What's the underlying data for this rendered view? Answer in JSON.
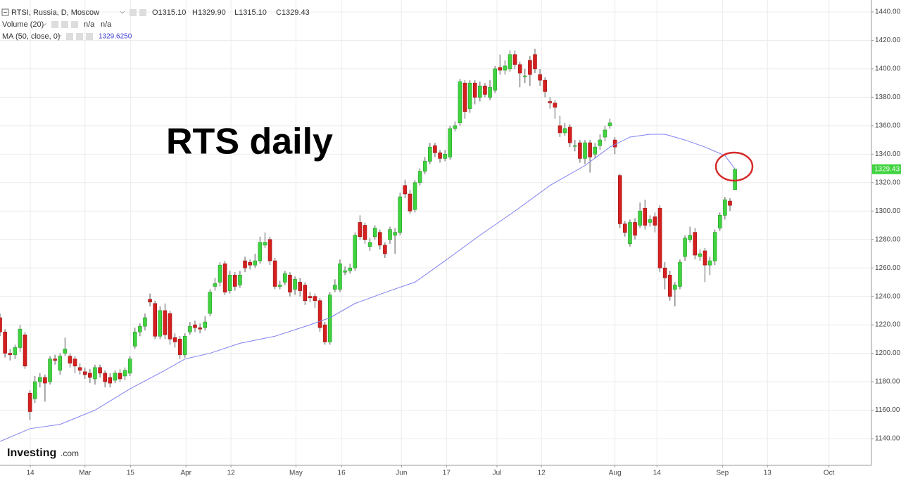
{
  "header": {
    "ohlc": [
      "O1315.10",
      "H1329.90",
      "L1315.10",
      "C1329.43"
    ],
    "volume": "Volume (20)",
    "volume_values": [
      "n/a",
      "n/a"
    ]
  },
  "logo": {
    "brand": "Investing",
    "suffix": ".com"
  },
  "chart_data": {
    "type": "candlestick",
    "annotation": "RTS daily",
    "xlim": [
      0,
      174.3
    ],
    "xticks": [
      {
        "value": 6.06,
        "label": "14"
      },
      {
        "value": 17.0,
        "label": "Mar"
      },
      {
        "value": 26.1,
        "label": "15"
      },
      {
        "value": 37.2,
        "label": "Apr"
      },
      {
        "value": 46.2,
        "label": "12"
      },
      {
        "value": 59.2,
        "label": "May"
      },
      {
        "value": 68.3,
        "label": "16"
      },
      {
        "value": 80.3,
        "label": "Jun"
      },
      {
        "value": 89.3,
        "label": "17"
      },
      {
        "value": 99.4,
        "label": "Jul"
      },
      {
        "value": 108.3,
        "label": "12"
      },
      {
        "value": 123.0,
        "label": "Aug"
      },
      {
        "value": 131.4,
        "label": "14"
      },
      {
        "value": 144.5,
        "label": "Sep"
      },
      {
        "value": 153.5,
        "label": "13"
      },
      {
        "value": 165.8,
        "label": "Oct"
      }
    ],
    "ylim": [
      1121.2,
      1448.4
    ],
    "yticks": [
      {
        "value": 1140,
        "label": "1140.00"
      },
      {
        "value": 1160,
        "label": "1160.00"
      },
      {
        "value": 1180,
        "label": "1180.00"
      },
      {
        "value": 1200,
        "label": "1200.00"
      },
      {
        "value": 1220,
        "label": "1220.00"
      },
      {
        "value": 1240,
        "label": "1240.00"
      },
      {
        "value": 1260,
        "label": "1260.00"
      },
      {
        "value": 1280,
        "label": "1280.00"
      },
      {
        "value": 1300,
        "label": "1300.00"
      },
      {
        "value": 1320,
        "label": "1320.00"
      },
      {
        "value": 1340,
        "label": "1340.00"
      },
      {
        "value": 1360,
        "label": "1360.00"
      },
      {
        "value": 1380,
        "label": "1380.00"
      },
      {
        "value": 1400,
        "label": "1400.00"
      },
      {
        "value": 1420,
        "label": "1420.00"
      },
      {
        "value": 1440,
        "label": "1440.00"
      }
    ],
    "grid": true,
    "series": [
      {
        "name": "RTSI, Russia, D, Moscow",
        "type": "candlestick",
        "up_color": "#3fd43f",
        "down_color": "#d61f1f",
        "last_label": "1329.43",
        "x": [
          0,
          1,
          2,
          3,
          4,
          5,
          6,
          7,
          8,
          9,
          10,
          11,
          12,
          13,
          14,
          15,
          16,
          17,
          18,
          19,
          20,
          21,
          22,
          23,
          24,
          25,
          26,
          27,
          28,
          29,
          30,
          31,
          32,
          33,
          34,
          35,
          36,
          37,
          38,
          39,
          40,
          41,
          42,
          43,
          44,
          45,
          46,
          47,
          48,
          49,
          50,
          51,
          52,
          53,
          54,
          55,
          56,
          57,
          58,
          59,
          60,
          61,
          62,
          63,
          64,
          65,
          66,
          67,
          68,
          69,
          70,
          71,
          72,
          73,
          74,
          75,
          76,
          77,
          78,
          79,
          80,
          81,
          82,
          83,
          84,
          85,
          86,
          87,
          88,
          89,
          90,
          91,
          92,
          93,
          94,
          95,
          96,
          97,
          98,
          99,
          100,
          101,
          102,
          103,
          104,
          105,
          106,
          107,
          108,
          109,
          110,
          111,
          112,
          113,
          114,
          115,
          116,
          117,
          118,
          119,
          120,
          121,
          122,
          123,
          124,
          125,
          126,
          127,
          128,
          129,
          130,
          131,
          132,
          133,
          134,
          135,
          136,
          137,
          138,
          139,
          140,
          141,
          142,
          143,
          144,
          145,
          146,
          147
        ],
        "open": [
          1225,
          1215,
          1200,
          1199,
          1204,
          1213,
          1172,
          1168,
          1180,
          1183,
          1180,
          1196,
          1188,
          1200,
          1198,
          1196,
          1190,
          1187,
          1186,
          1182,
          1190,
          1186,
          1183,
          1181,
          1186,
          1184,
          1186,
          1205,
          1215,
          1219,
          1238,
          1235,
          1212,
          1230,
          1228,
          1211,
          1210,
          1199,
          1215,
          1220,
          1218,
          1218,
          1228,
          1247,
          1250,
          1263,
          1244,
          1255,
          1248,
          1265,
          1264,
          1262,
          1265,
          1276,
          1280,
          1265,
          1247,
          1250,
          1255,
          1245,
          1250,
          1248,
          1240,
          1240,
          1237,
          1220,
          1208,
          1245,
          1245,
          1257,
          1258,
          1260,
          1292,
          1290,
          1275,
          1282,
          1285,
          1276,
          1280,
          1283,
          1285,
          1318,
          1312,
          1301,
          1320,
          1328,
          1335,
          1346,
          1341,
          1337,
          1338,
          1358,
          1362,
          1390,
          1372,
          1390,
          1380,
          1388,
          1380,
          1385,
          1401,
          1399,
          1400,
          1410,
          1403,
          1395,
          1406,
          1410,
          1396,
          1392,
          1377,
          1376,
          1360,
          1355,
          1359,
          1346,
          1348,
          1337,
          1348,
          1340,
          1346,
          1352,
          1360,
          1350,
          1325,
          1291,
          1277,
          1292,
          1290,
          1302,
          1292,
          1296,
          1302,
          1260,
          1255,
          1245,
          1247,
          1268,
          1280,
          1285,
          1268,
          1272,
          1262,
          1265,
          1288,
          1297,
          1307,
          1315.1
        ],
        "high": [
          1228,
          1217,
          1203,
          1206,
          1220,
          1215,
          1174,
          1184,
          1186,
          1185,
          1198,
          1199,
          1200,
          1211,
          1200,
          1198,
          1193,
          1190,
          1189,
          1192,
          1192,
          1188,
          1186,
          1188,
          1189,
          1190,
          1198,
          1218,
          1221,
          1228,
          1242,
          1237,
          1233,
          1235,
          1230,
          1214,
          1212,
          1214,
          1222,
          1223,
          1221,
          1226,
          1245,
          1253,
          1264,
          1265,
          1258,
          1257,
          1258,
          1268,
          1266,
          1270,
          1282,
          1285,
          1282,
          1267,
          1251,
          1258,
          1257,
          1254,
          1253,
          1250,
          1243,
          1242,
          1239,
          1222,
          1243,
          1252,
          1266,
          1261,
          1263,
          1285,
          1297,
          1292,
          1281,
          1290,
          1287,
          1278,
          1289,
          1288,
          1313,
          1322,
          1315,
          1322,
          1330,
          1338,
          1348,
          1348,
          1343,
          1343,
          1360,
          1363,
          1393,
          1392,
          1392,
          1392,
          1391,
          1390,
          1392,
          1402,
          1410,
          1406,
          1413,
          1413,
          1405,
          1400,
          1409,
          1414,
          1400,
          1394,
          1380,
          1378,
          1367,
          1362,
          1361,
          1350,
          1350,
          1350,
          1350,
          1348,
          1354,
          1360,
          1365,
          1352,
          1326,
          1293,
          1294,
          1295,
          1306,
          1308,
          1297,
          1299,
          1304,
          1264,
          1258,
          1250,
          1266,
          1283,
          1289,
          1288,
          1273,
          1274,
          1268,
          1287,
          1299,
          1310,
          1309,
          1329.9
        ],
        "low": [
          1212,
          1197,
          1195,
          1196,
          1201,
          1189,
          1153,
          1165,
          1176,
          1166,
          1178,
          1192,
          1185,
          1198,
          1190,
          1186,
          1185,
          1182,
          1179,
          1178,
          1183,
          1176,
          1176,
          1179,
          1180,
          1181,
          1184,
          1203,
          1212,
          1216,
          1233,
          1210,
          1210,
          1210,
          1206,
          1204,
          1196,
          1197,
          1213,
          1215,
          1214,
          1216,
          1226,
          1244,
          1247,
          1241,
          1242,
          1244,
          1246,
          1257,
          1259,
          1260,
          1263,
          1274,
          1262,
          1245,
          1245,
          1248,
          1240,
          1241,
          1240,
          1234,
          1236,
          1232,
          1215,
          1206,
          1206,
          1243,
          1243,
          1255,
          1256,
          1258,
          1280,
          1277,
          1272,
          1280,
          1273,
          1267,
          1277,
          1270,
          1283,
          1309,
          1298,
          1299,
          1318,
          1326,
          1333,
          1338,
          1334,
          1335,
          1336,
          1356,
          1360,
          1365,
          1369,
          1375,
          1377,
          1380,
          1378,
          1383,
          1396,
          1396,
          1398,
          1400,
          1387,
          1390,
          1388,
          1397,
          1388,
          1380,
          1372,
          1365,
          1352,
          1353,
          1345,
          1342,
          1334,
          1333,
          1327,
          1337,
          1343,
          1349,
          1358,
          1340,
          1288,
          1282,
          1275,
          1280,
          1288,
          1287,
          1289,
          1285,
          1257,
          1245,
          1237,
          1233,
          1245,
          1265,
          1278,
          1266,
          1265,
          1250,
          1255,
          1262,
          1286,
          1294,
          1300,
          1315.1
        ],
        "close": [
          1215,
          1200,
          1199,
          1204,
          1217,
          1191,
          1159,
          1180,
          1183,
          1179,
          1196,
          1195,
          1198,
          1203,
          1193,
          1191,
          1188,
          1185,
          1183,
          1190,
          1186,
          1180,
          1179,
          1186,
          1182,
          1188,
          1196,
          1215,
          1219,
          1225,
          1236,
          1212,
          1230,
          1213,
          1210,
          1208,
          1199,
          1212,
          1219,
          1218,
          1217,
          1222,
          1243,
          1249,
          1262,
          1243,
          1255,
          1247,
          1255,
          1260,
          1262,
          1265,
          1278,
          1278,
          1265,
          1247,
          1248,
          1256,
          1243,
          1252,
          1244,
          1237,
          1239,
          1237,
          1218,
          1208,
          1241,
          1248,
          1263,
          1258,
          1260,
          1283,
          1282,
          1280,
          1278,
          1288,
          1276,
          1270,
          1287,
          1285,
          1310,
          1312,
          1300,
          1320,
          1328,
          1335,
          1345,
          1341,
          1337,
          1340,
          1358,
          1360,
          1391,
          1370,
          1390,
          1380,
          1388,
          1382,
          1387,
          1400,
          1399,
          1402,
          1410,
          1403,
          1397,
          1395,
          1396,
          1400,
          1392,
          1384,
          1376,
          1373,
          1355,
          1358,
          1348,
          1346,
          1337,
          1348,
          1338,
          1345,
          1350,
          1357,
          1362,
          1345,
          1291,
          1285,
          1292,
          1283,
          1300,
          1290,
          1294,
          1290,
          1260,
          1253,
          1240,
          1248,
          1264,
          1281,
          1283,
          1269,
          1270,
          1262,
          1265,
          1285,
          1297,
          1308,
          1304,
          1329.43
        ]
      },
      {
        "name": "MA (50, close, 0)",
        "type": "line",
        "color": "#8080f0",
        "value_label": "1329.6250",
        "x": [
          0,
          6,
          12,
          19,
          26,
          33,
          37,
          42,
          48,
          55,
          62,
          66,
          71,
          78,
          83,
          89,
          96,
          103,
          110,
          117,
          122,
          126,
          130,
          133,
          137,
          141,
          145,
          147
        ],
        "values": [
          1138,
          1147,
          1150,
          1160,
          1175,
          1188,
          1196,
          1200,
          1207,
          1212,
          1220,
          1225,
          1235,
          1244,
          1250,
          1265,
          1283,
          1300,
          1318,
          1332,
          1345,
          1352,
          1354,
          1354,
          1350,
          1345,
          1339,
          1329.625
        ]
      }
    ]
  }
}
